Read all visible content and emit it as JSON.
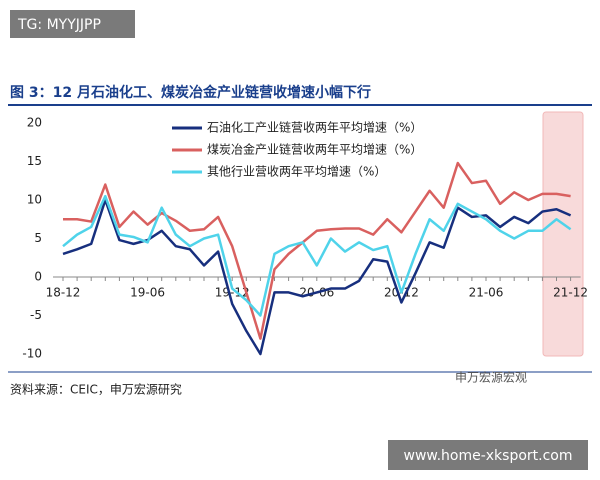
{
  "watermark": "TG: MYYJJPP",
  "chart_data": {
    "type": "line",
    "title": "图 3：12 月石油化工、煤炭冶金产业链营收增速小幅下行",
    "categories": [
      "18-12",
      null,
      null,
      null,
      null,
      null,
      "19-06",
      null,
      null,
      null,
      null,
      null,
      "19-12",
      null,
      null,
      null,
      null,
      null,
      "20-06",
      null,
      null,
      null,
      null,
      null,
      "20-12",
      null,
      null,
      null,
      null,
      null,
      "21-06",
      null,
      null,
      null,
      null,
      null,
      "21-12"
    ],
    "series": [
      {
        "name": "石油化工产业链营收两年平均增速（%）",
        "color": "#172f7e",
        "values": [
          3.0,
          3.6,
          4.3,
          10.0,
          4.8,
          4.3,
          4.8,
          6.0,
          4.0,
          3.6,
          1.5,
          3.3,
          -3.5,
          -7.0,
          -10.0,
          -2.0,
          -2.0,
          -2.5,
          -2.0,
          -1.5,
          -1.5,
          -0.5,
          2.3,
          2.0,
          -3.3,
          0.5,
          4.5,
          3.8,
          9.0,
          7.8,
          8.0,
          6.5,
          7.8,
          7.0,
          8.5,
          8.8,
          8.0
        ]
      },
      {
        "name": "煤炭冶金产业链营收两年平均增速（%）",
        "color": "#d9605f",
        "values": [
          7.5,
          7.5,
          7.2,
          12.0,
          6.5,
          8.5,
          6.8,
          8.3,
          7.3,
          6.0,
          6.2,
          7.8,
          4.0,
          -2.0,
          -8.0,
          1.0,
          3.0,
          4.5,
          6.0,
          6.2,
          6.3,
          6.3,
          5.5,
          7.5,
          5.8,
          8.5,
          11.2,
          9.0,
          14.8,
          12.2,
          12.5,
          9.5,
          11.0,
          10.0,
          10.8,
          10.8,
          10.5
        ]
      },
      {
        "name": "其他行业营收两年平均增速（%）",
        "color": "#4fd3ea",
        "values": [
          4.0,
          5.5,
          6.5,
          10.5,
          5.5,
          5.2,
          4.5,
          9.0,
          5.5,
          4.0,
          5.0,
          5.5,
          -1.5,
          -3.0,
          -5.0,
          3.0,
          4.0,
          4.5,
          1.5,
          5.0,
          3.3,
          4.5,
          3.5,
          4.0,
          -2.0,
          3.0,
          7.5,
          6.0,
          9.5,
          8.5,
          7.5,
          6.0,
          5.0,
          6.0,
          6.0,
          7.5,
          6.2
        ]
      }
    ],
    "ylim": [
      -10,
      20
    ],
    "yticks": [
      20,
      15,
      10,
      5,
      0,
      -5,
      -10
    ],
    "annotation": "申万宏源宏观",
    "source": "资料来源：CEIC，申万宏源研究"
  },
  "footer_url": "www.home-xksport.com"
}
